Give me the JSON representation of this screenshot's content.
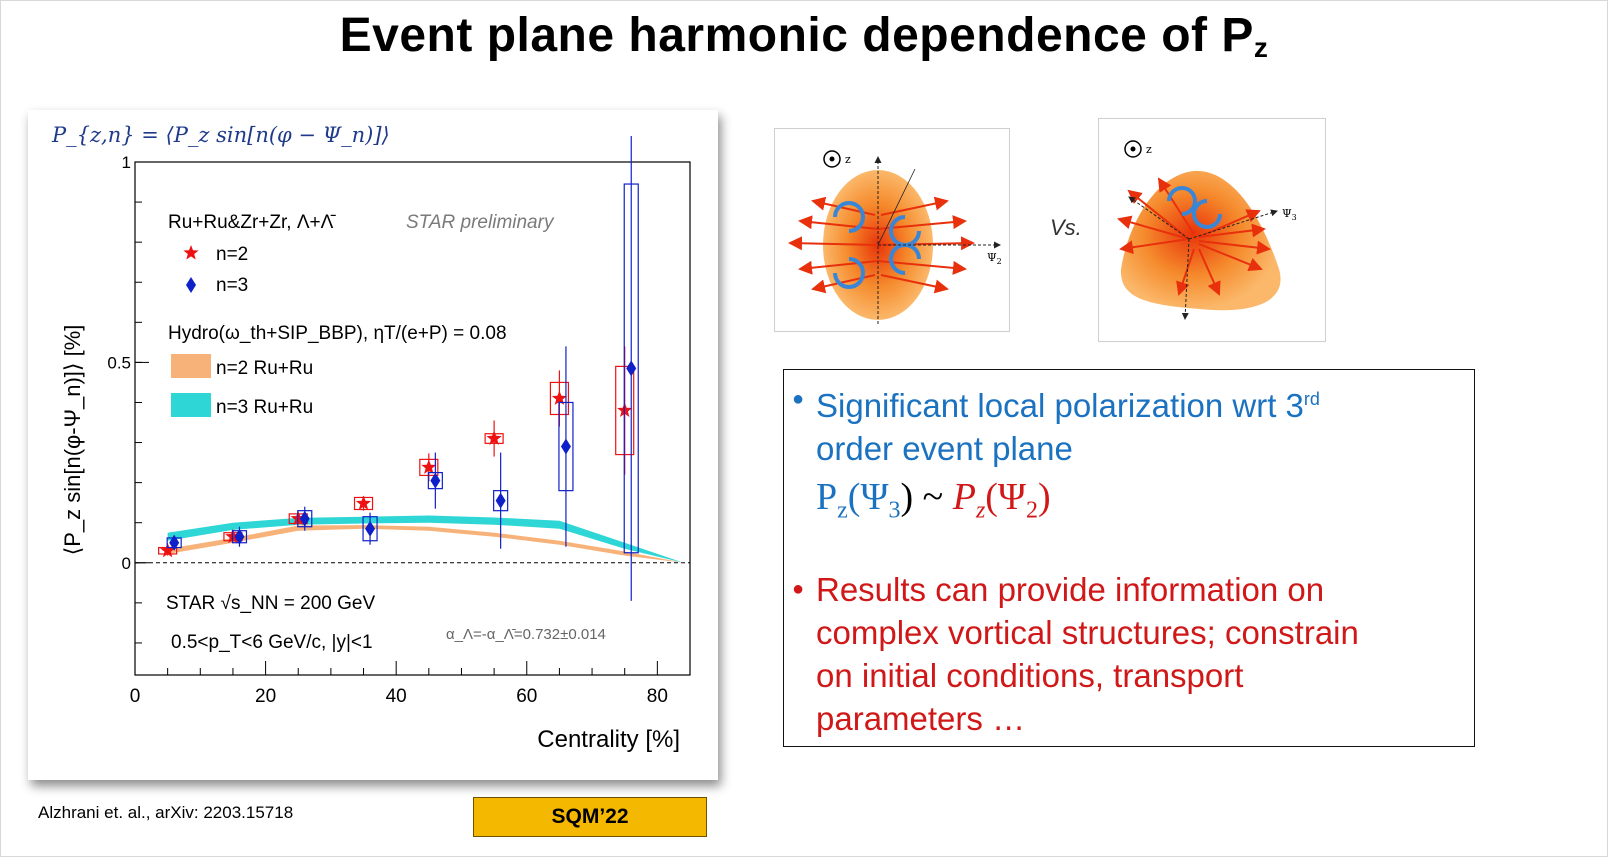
{
  "slide": {
    "title_main": "Event plane harmonic dependence of P",
    "title_sub": "z",
    "vs_label": "Vs.",
    "citation": "Alzhrani et. al., arXiv: 2203.15718",
    "conference": "SQM’22"
  },
  "diagrams": {
    "left": {
      "z_label": "z",
      "axis_label": "Ψ",
      "axis_sub": "2"
    },
    "right": {
      "z_label": "z",
      "axis_label": "Ψ",
      "axis_sub": "3"
    }
  },
  "textbox": {
    "bullet1_line1": "Significant local polarization wrt 3",
    "bullet1_sup": "rd",
    "bullet1_line2": "order event plane",
    "formula_left": "P",
    "formula_left_sub": "z",
    "formula_left_arg": "(Ψ",
    "formula_left_arg_sub": "3",
    "formula_mid": ") ~ ",
    "formula_right": "P",
    "formula_right_sub": "z",
    "formula_right_arg": "(Ψ",
    "formula_right_arg_sub": "2",
    "formula_end": ")",
    "bullet2_lines": [
      "Results can provide information on",
      "complex vortical structures; constrain",
      "on initial conditions, transport",
      "parameters …"
    ],
    "colors": {
      "blue": "#1a72c0",
      "red": "#d01818"
    }
  },
  "chart_data": {
    "type": "scatter",
    "definition": "P_{z,n} = ⟨P_z sin[n(φ − Ψ_n)]⟩",
    "xlabel": "Centrality [%]",
    "ylabel": "⟨P_z sin[n(φ-Ψ_n)]⟩ [%]",
    "xlim": [
      0,
      85
    ],
    "ylim": [
      -0.28,
      1.0
    ],
    "x_ticks": [
      0,
      20,
      40,
      60,
      80
    ],
    "y_ticks": [
      0,
      0.5,
      1
    ],
    "y_tick_labels": [
      "0",
      "0.5",
      "1"
    ],
    "legend_header": "Ru+Ru&Zr+Zr, Λ+Λ̄",
    "preliminary": "STAR preliminary",
    "hydro_label": "Hydro(ω_th+SIP_BBP), ηT/(e+P) = 0.08",
    "energy_label": "STAR √s_NN = 200 GeV",
    "cuts_label": "0.5<p_T<6 GeV/c, |y|<1",
    "alpha_label": "α_Λ=-α_Λ̄=0.732±0.014",
    "series": [
      {
        "name": "n=2",
        "marker": "star",
        "color": "#ee1111",
        "x": [
          5,
          15,
          25,
          35,
          45,
          55,
          65,
          75
        ],
        "y": [
          0.03,
          0.065,
          0.11,
          0.148,
          0.238,
          0.31,
          0.41,
          0.38
        ],
        "stat_err": [
          0.012,
          0.012,
          0.015,
          0.018,
          0.035,
          0.045,
          0.07,
          0.16
        ],
        "sys_err": [
          0.008,
          0.01,
          0.012,
          0.015,
          0.02,
          0.012,
          0.04,
          0.11
        ]
      },
      {
        "name": "n=3",
        "marker": "diamond",
        "color": "#1020c8",
        "x": [
          6,
          16,
          26,
          36,
          46,
          56,
          66,
          76
        ],
        "y": [
          0.05,
          0.065,
          0.11,
          0.085,
          0.205,
          0.155,
          0.29,
          0.485
        ],
        "stat_err": [
          0.015,
          0.025,
          0.03,
          0.04,
          0.07,
          0.12,
          0.25,
          0.58
        ],
        "sys_err": [
          0.012,
          0.015,
          0.02,
          0.03,
          0.02,
          0.025,
          0.11,
          0.46
        ]
      }
    ],
    "bands": [
      {
        "name": "n=2 Ru+Ru",
        "color": "#f7b27a",
        "x": [
          5,
          15,
          25,
          35,
          45,
          55,
          65,
          75,
          84
        ],
        "lo": [
          0.022,
          0.05,
          0.08,
          0.085,
          0.08,
          0.065,
          0.045,
          0.018,
          0.0
        ],
        "hi": [
          0.035,
          0.062,
          0.093,
          0.094,
          0.09,
          0.075,
          0.055,
          0.028,
          0.0
        ]
      },
      {
        "name": "n=3 Ru+Ru",
        "color": "#2ed6d6",
        "x": [
          5,
          15,
          25,
          35,
          45,
          55,
          65,
          75,
          84
        ],
        "lo": [
          0.055,
          0.082,
          0.095,
          0.098,
          0.1,
          0.095,
          0.085,
          0.035,
          0.0
        ],
        "hi": [
          0.075,
          0.1,
          0.112,
          0.115,
          0.118,
          0.113,
          0.105,
          0.05,
          0.0
        ]
      }
    ],
    "grid": false
  }
}
